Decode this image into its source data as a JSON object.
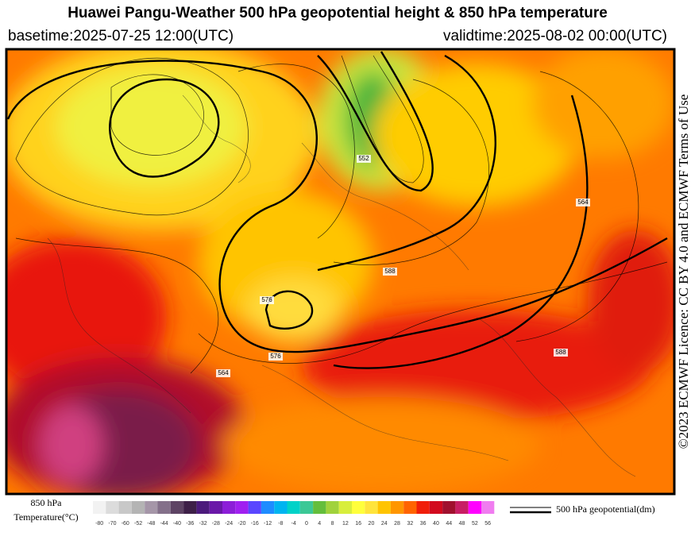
{
  "header": {
    "title": "Huawei Pangu-Weather 500 hPa geopotential height & 850 hPa temperature",
    "basetime": "basetime:2025-07-25 12:00(UTC)",
    "validtime": "validtime:2025-08-02 00:00(UTC)"
  },
  "credit": "©2023 ECMWF Licence: CC BY 4.0 and ECMWF Terms of Use",
  "map": {
    "contour_labels": [
      "588",
      "576",
      "564",
      "588",
      "576",
      "552",
      "564"
    ]
  },
  "legend": {
    "label_line1": "850 hPa",
    "label_line2": "Temperature(°C)",
    "ticks": [
      -80,
      -70,
      -60,
      -52,
      -48,
      -44,
      -40,
      -36,
      -32,
      -28,
      -24,
      -20,
      -16,
      -12,
      -8,
      -4,
      0,
      4,
      8,
      12,
      16,
      20,
      24,
      28,
      32,
      36,
      40,
      44,
      48,
      52,
      56
    ],
    "colors": [
      "#f2f2f2",
      "#dcdcdc",
      "#c8c8c8",
      "#b4b4b4",
      "#a596a8",
      "#84708a",
      "#5e4464",
      "#3e2048",
      "#4c1a7c",
      "#6a18a8",
      "#8c1ed8",
      "#a020f0",
      "#5a46ff",
      "#1e8cff",
      "#00b4f0",
      "#00d2c8",
      "#3cc896",
      "#64be3c",
      "#a0d23c",
      "#d8ee3c",
      "#ffff3c",
      "#ffe43c",
      "#ffc400",
      "#ff9600",
      "#ff6400",
      "#f01e0a",
      "#d20a1e",
      "#a0102e",
      "#c81e64",
      "#ff00ff",
      "#f07cf0"
    ],
    "contour_label": "500 hPa geopotential(dm)"
  }
}
